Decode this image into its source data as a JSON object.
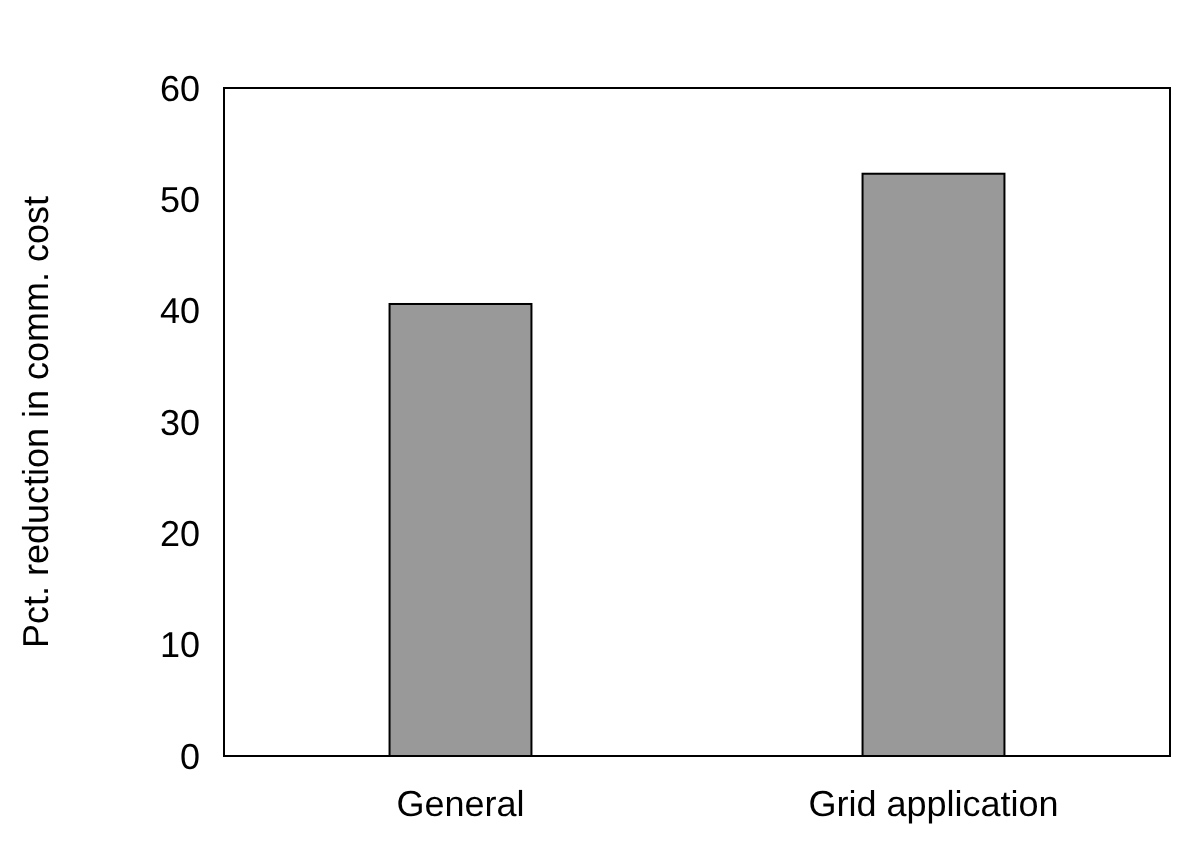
{
  "chart_data": {
    "type": "bar",
    "ylabel": "Pct. reduction in comm. cost",
    "categories": [
      "General",
      "Grid application"
    ],
    "values": [
      40.6,
      52.3
    ],
    "color": "#999999",
    "ylim": [
      0,
      60
    ],
    "yticks": [
      0,
      10,
      20,
      30,
      40,
      50,
      60
    ],
    "grid": false
  }
}
